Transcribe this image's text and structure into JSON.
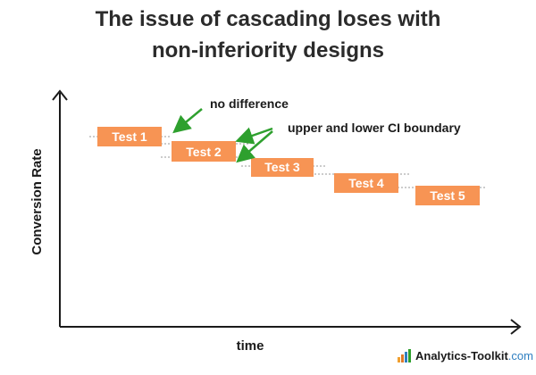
{
  "title": {
    "line1": "The issue of cascading loses with",
    "line2": "non-inferiority designs"
  },
  "axes": {
    "y_label": "Conversion Rate",
    "x_label": "time"
  },
  "tests": [
    {
      "label": "Test 1"
    },
    {
      "label": "Test 2"
    },
    {
      "label": "Test 3"
    },
    {
      "label": "Test 4"
    },
    {
      "label": "Test 5"
    }
  ],
  "annotations": {
    "no_difference": "no difference",
    "ci_boundary": "upper and lower CI boundary"
  },
  "logo": {
    "name": "Analytics-Toolkit",
    "tld": ".com",
    "icon": "bar-chart-icon"
  },
  "colors": {
    "box": "#f79454",
    "arrow": "#2ea02e",
    "axis": "#1a1a1a",
    "logo_accent": "#2f7fc1"
  }
}
